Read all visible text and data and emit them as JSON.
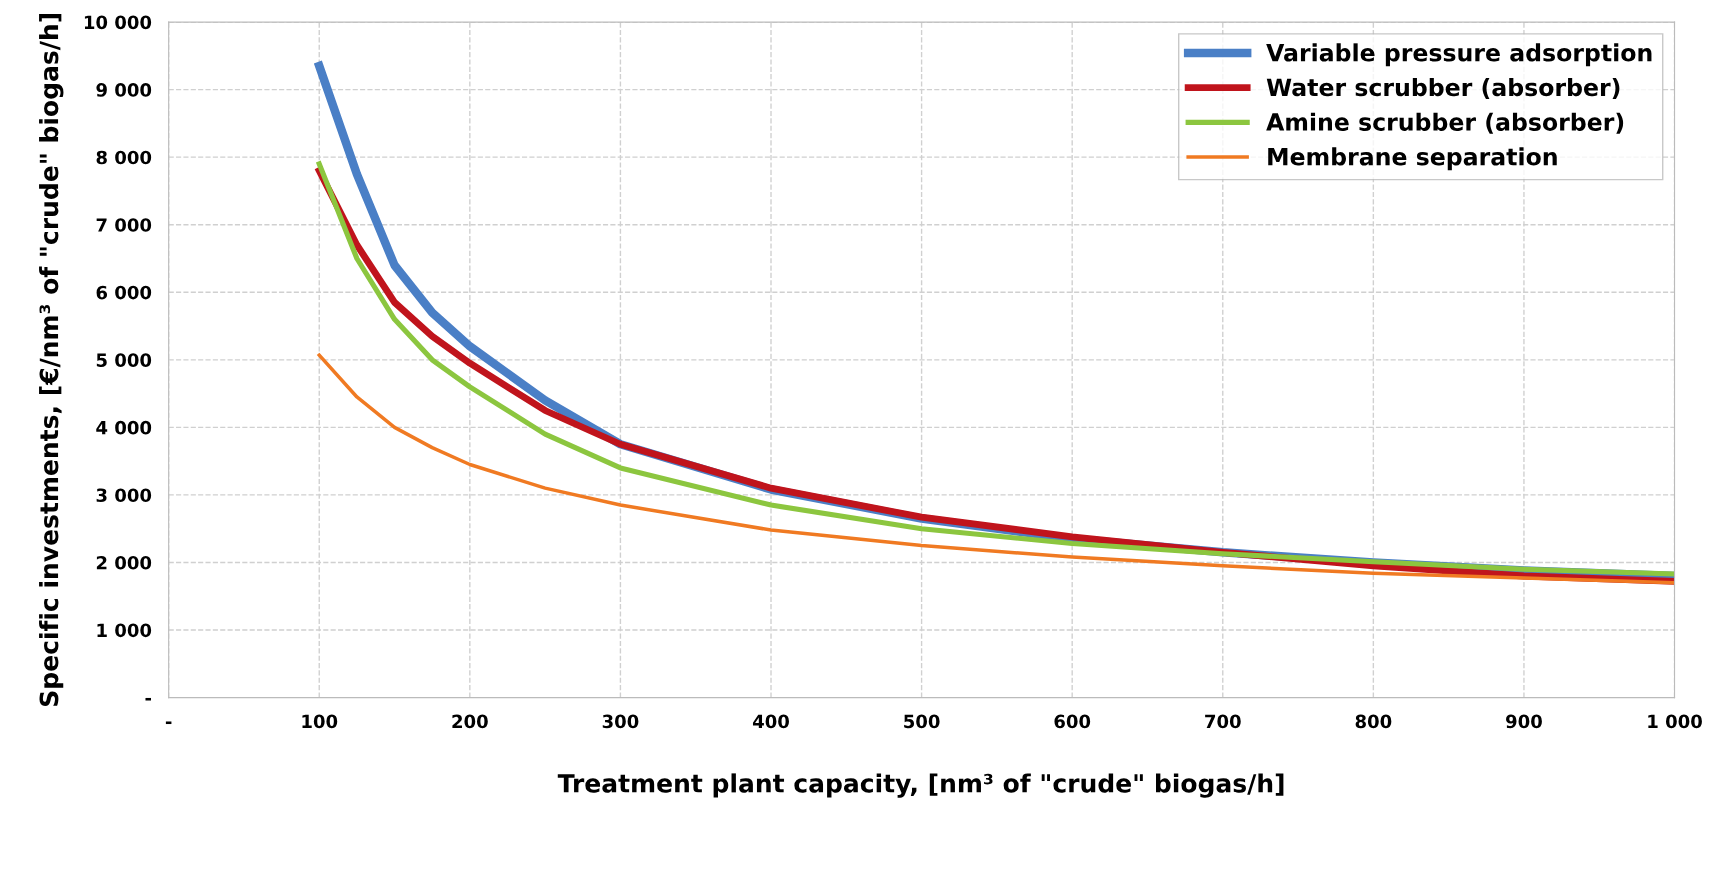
{
  "chart_data": {
    "type": "line",
    "xlabel": "Treatment plant capacity, [nm³ of \"crude\" biogas/h]",
    "ylabel": "Specific investments, [€/nm³ of \"crude\" biogas/h]",
    "x": [
      100,
      125,
      150,
      175,
      200,
      250,
      300,
      400,
      500,
      600,
      700,
      800,
      900,
      1000
    ],
    "series": [
      {
        "name": "Variable pressure adsorption",
        "color": "#4a7fc6",
        "values": [
          9350,
          7750,
          6400,
          5700,
          5200,
          4400,
          3750,
          3080,
          2650,
          2350,
          2150,
          2000,
          1880,
          1800
        ]
      },
      {
        "name": "Water scrubber (absorber)",
        "color": "#c0141c",
        "values": [
          7800,
          6700,
          5850,
          5350,
          4950,
          4250,
          3750,
          3100,
          2670,
          2380,
          2150,
          1950,
          1800,
          1720
        ]
      },
      {
        "name": "Amine scrubber (absorber)",
        "color": "#8cc63f",
        "values": [
          7900,
          6500,
          5600,
          5000,
          4600,
          3900,
          3400,
          2850,
          2500,
          2280,
          2130,
          2010,
          1900,
          1830
        ]
      },
      {
        "name": "Membrane separation",
        "color": "#f07a22",
        "values": [
          5070,
          4450,
          4000,
          3700,
          3450,
          3100,
          2850,
          2480,
          2250,
          2080,
          1950,
          1840,
          1770,
          1700
        ]
      }
    ],
    "xlim": [
      0,
      1000
    ],
    "ylim": [
      0,
      10000
    ],
    "xticks": [
      {
        "value": 0,
        "label": "-"
      },
      100,
      200,
      300,
      400,
      500,
      600,
      700,
      800,
      900,
      {
        "value": 1000,
        "label": "1 000"
      }
    ],
    "yticks": [
      {
        "value": 0,
        "label": "-"
      },
      {
        "value": 1000,
        "label": "1 000"
      },
      {
        "value": 2000,
        "label": "2 000"
      },
      {
        "value": 3000,
        "label": "3 000"
      },
      {
        "value": 4000,
        "label": "4 000"
      },
      {
        "value": 5000,
        "label": "5 000"
      },
      {
        "value": 6000,
        "label": "6 000"
      },
      {
        "value": 7000,
        "label": "7 000"
      },
      {
        "value": 8000,
        "label": "8 000"
      },
      {
        "value": 9000,
        "label": "9 000"
      },
      {
        "value": 10000,
        "label": "10 000"
      }
    ],
    "grid": true,
    "legend": "top right",
    "marker": "none",
    "line_style": "solid"
  }
}
